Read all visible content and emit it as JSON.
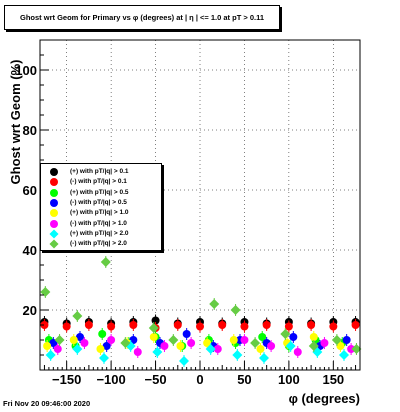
{
  "title": "Ghost wrt Geom for Primary vs φ (degrees) at | η | <= 1.0 at pT > 0.11",
  "footer": "Fri Nov 20 09:46:00 2020",
  "chart_data": {
    "type": "scatter",
    "xlabel": "φ (degrees)",
    "ylabel": "Ghost wrt Geom (%)",
    "xlim": [
      -180,
      180
    ],
    "ylim": [
      0,
      110
    ],
    "x_ticks": [
      -150,
      -100,
      -50,
      0,
      50,
      100,
      150
    ],
    "y_ticks": [
      20,
      40,
      60,
      80,
      100
    ],
    "grid": true,
    "legend_position": "top-left",
    "series": [
      {
        "name": "(+) with pT/|q| > 0.1",
        "color": "#000000",
        "marker": "circle",
        "x": [
          -175,
          -150,
          -125,
          -100,
          -75,
          -50,
          -25,
          0,
          25,
          50,
          75,
          100,
          125,
          150,
          175
        ],
        "values": [
          16,
          15.5,
          16,
          15.5,
          16,
          16.5,
          15.5,
          16,
          15.5,
          16,
          15.5,
          16,
          15.5,
          16,
          16
        ]
      },
      {
        "name": "(-) with pT/|q| > 0.1",
        "color": "#ff0000",
        "marker": "circle",
        "x": [
          -175,
          -150,
          -125,
          -100,
          -75,
          -50,
          -25,
          0,
          25,
          50,
          75,
          100,
          125,
          150,
          175
        ],
        "values": [
          15,
          14.5,
          15,
          14.5,
          15,
          14,
          15,
          14.5,
          15,
          14.5,
          15,
          14.5,
          15,
          14.5,
          15
        ]
      },
      {
        "name": "(+) with pT/|q| > 0.5",
        "color": "#00ff00",
        "marker": "circle",
        "x": [
          -170,
          -140,
          -110,
          -80,
          -50,
          -20,
          10,
          40,
          70,
          100,
          130,
          160
        ],
        "values": [
          10,
          8,
          12,
          9,
          11,
          8,
          10,
          9,
          11,
          8,
          10,
          9
        ]
      },
      {
        "name": "(-) with pT/|q| > 0.5",
        "color": "#0000ff",
        "marker": "circle",
        "x": [
          -165,
          -135,
          -105,
          -75,
          -45,
          -15,
          15,
          45,
          75,
          105,
          135,
          165
        ],
        "values": [
          9,
          11,
          8,
          10,
          9,
          12,
          8,
          10,
          9,
          11,
          8,
          10
        ]
      },
      {
        "name": "(+) with pT/|q| > 1.0",
        "color": "#ffff00",
        "marker": "circle",
        "x": [
          -172,
          -142,
          -112,
          -82,
          -52,
          -22,
          8,
          38,
          68,
          98,
          128,
          158
        ],
        "values": [
          8,
          10,
          7,
          9,
          11,
          8,
          9,
          10,
          7,
          9,
          11,
          8
        ]
      },
      {
        "name": "(-) with pT/|q| > 1.0",
        "color": "#ff00ff",
        "marker": "circle",
        "x": [
          -160,
          -130,
          -100,
          -70,
          -40,
          -10,
          20,
          50,
          80,
          110,
          140,
          170
        ],
        "values": [
          7,
          9,
          10,
          6,
          8,
          9,
          7,
          10,
          8,
          6,
          9,
          7
        ]
      },
      {
        "name": "(+) with pT/|q| > 2.0",
        "color": "#00ffff",
        "marker": "diamond",
        "x": [
          -168,
          -138,
          -108,
          -78,
          -48,
          -18,
          12,
          42,
          72,
          102,
          132,
          162
        ],
        "values": [
          5,
          7,
          4,
          8,
          6,
          3,
          7,
          5,
          4,
          8,
          6,
          5
        ]
      },
      {
        "name": "(-) with pT/|q| > 2.0",
        "color": "#66cc44",
        "marker": "diamond",
        "x": [
          -174,
          -158,
          -138,
          -106,
          -84,
          -52,
          -30,
          16,
          40,
          62,
          96,
          128,
          154,
          176
        ],
        "values": [
          26,
          10,
          18,
          36,
          9,
          14,
          10,
          22,
          20,
          9,
          12,
          8,
          10,
          7
        ]
      }
    ]
  }
}
